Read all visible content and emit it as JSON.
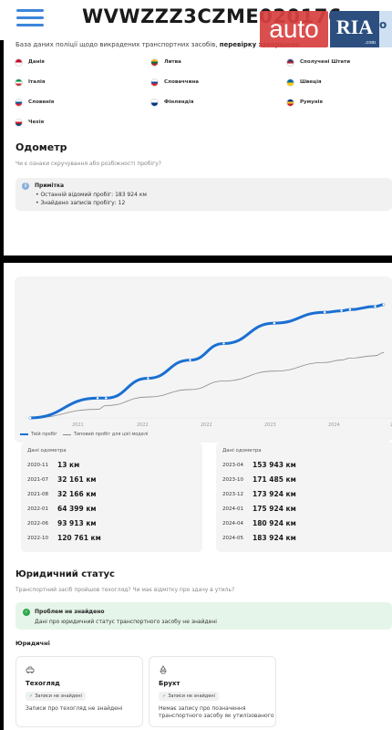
{
  "header": {
    "vin": "WVWZZZ3CZME020176",
    "logo_auto": "auto",
    "logo_ria": "RIA",
    "logo_ria_domain": ".com",
    "logo_partial": "о"
  },
  "countries_section": {
    "intro_prefix": "База даних поліції щодо викрадених транспортних засобів, ",
    "intro_bold": "перевірку завершено",
    "intro_suffix": ":",
    "countries": [
      {
        "name": "Данія",
        "colors": [
          "#c8102e",
          "#ffffff"
        ]
      },
      {
        "name": "Литва",
        "colors": [
          "#fdb913",
          "#006a44",
          "#c1272d"
        ]
      },
      {
        "name": "Сполучені Штати",
        "colors": [
          "#3c3b6e",
          "#b22234",
          "#ffffff"
        ]
      },
      {
        "name": "Італія",
        "colors": [
          "#009246",
          "#ffffff",
          "#ce2b37"
        ]
      },
      {
        "name": "Словаччина",
        "colors": [
          "#ffffff",
          "#0b4ea2",
          "#ee1c25"
        ]
      },
      {
        "name": "Швеція",
        "colors": [
          "#006aa7",
          "#fecc00"
        ]
      },
      {
        "name": "Словенія",
        "colors": [
          "#ffffff",
          "#005da4",
          "#ed1c24"
        ]
      },
      {
        "name": "Фінляндія",
        "colors": [
          "#ffffff",
          "#003580"
        ]
      },
      {
        "name": "Румунія",
        "colors": [
          "#002b7f",
          "#fcd116",
          "#ce1126"
        ]
      },
      {
        "name": "Чехія",
        "colors": [
          "#ffffff",
          "#d7141a",
          "#11457e"
        ]
      }
    ]
  },
  "odometer": {
    "title": "Одометр",
    "subtitle": "Чи є ознаки скручування або розбіжності пробігу?",
    "note_title": "Примітка",
    "note_lines": [
      "Останній відомий пробіг: 183 924 км",
      "Знайдено записів пробігу: 12"
    ]
  },
  "chart_data": {
    "type": "line",
    "x": [
      "2020-11",
      "2021-07",
      "2021-08",
      "2022-01",
      "2022-06",
      "2022-10",
      "2023-04",
      "2023-10",
      "2023-12",
      "2024-01",
      "2024-04",
      "2024-05"
    ],
    "x_tick_labels": [
      "2021",
      "2022",
      "2022",
      "2023",
      "2024",
      "202"
    ],
    "series": [
      {
        "name": "Твій пробіг",
        "color": "#1a6fd1",
        "values": [
          13,
          32161,
          32166,
          64399,
          93913,
          120761,
          153943,
          171485,
          173924,
          175924,
          180924,
          183924
        ]
      },
      {
        "name": "Типовий пробіг для цієї моделі",
        "color": "#8a8a8a",
        "values": [
          0,
          14000,
          20000,
          34000,
          46000,
          60000,
          76000,
          90000,
          94000,
          97000,
          101000,
          106000
        ]
      }
    ],
    "ylim": [
      0,
      200000
    ],
    "grid": false,
    "legend": "bottom-left"
  },
  "records": {
    "column_header": "Дані одометра",
    "left": [
      {
        "date": "2020-11",
        "value": "13 км"
      },
      {
        "date": "2021-07",
        "value": "32 161 км"
      },
      {
        "date": "2021-08",
        "value": "32 166 км"
      },
      {
        "date": "2022-01",
        "value": "64 399 км"
      },
      {
        "date": "2022-06",
        "value": "93 913 км"
      },
      {
        "date": "2022-10",
        "value": "120 761 км"
      }
    ],
    "right": [
      {
        "date": "2023-04",
        "value": "153 943 км"
      },
      {
        "date": "2023-10",
        "value": "171 485 км"
      },
      {
        "date": "2023-12",
        "value": "173 924 км"
      },
      {
        "date": "2024-01",
        "value": "175 924 км"
      },
      {
        "date": "2024-04",
        "value": "180 924 км"
      },
      {
        "date": "2024-05",
        "value": "183 924 км"
      }
    ]
  },
  "legal": {
    "title": "Юридичний статус",
    "subtitle": "Транспортний засіб пройшов техогляд? Чи має відмітку про здачу в утиль?",
    "problem_title": "Проблем не знайдено",
    "problem_text": "Дані про юридичний статус транспортного засобу не знайдені",
    "section_label": "Юридичні",
    "cards": [
      {
        "title": "Техогляд",
        "badge": "Записи не знайдені",
        "text": [
          "Записи про техогляд не знайдені"
        ],
        "icon": "car-inspection-icon"
      },
      {
        "title": "Брухт",
        "badge": "Записи не знайдені",
        "text": [
          "Немає запису про позначення",
          "транспортного засобу як утилізованого"
        ],
        "icon": "recycle-icon"
      }
    ]
  }
}
